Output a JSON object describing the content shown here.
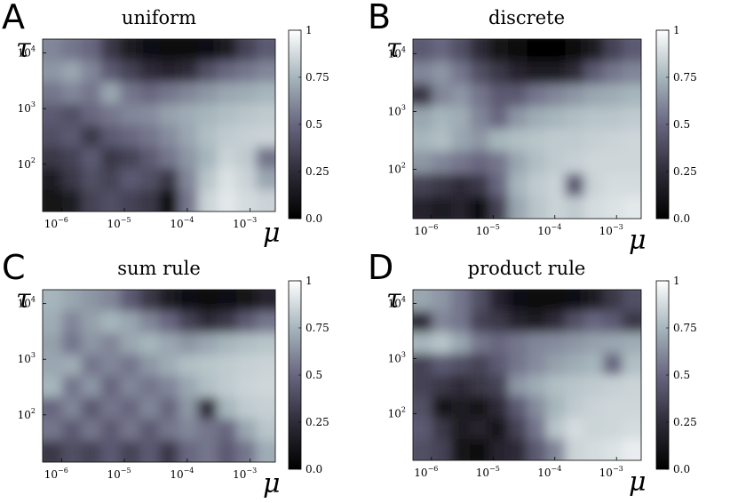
{
  "chart_data": [
    {
      "type": "heatmap",
      "panel": "A",
      "title": "uniform",
      "xlabel": "μ",
      "ylabel": "τ",
      "x_scale": "log",
      "y_scale": "log",
      "x_ticks": [
        "10^-6",
        "10^-5",
        "10^-4",
        "10^-3"
      ],
      "y_ticks": [
        "10^2",
        "10^3",
        "10^4"
      ],
      "colorbar_ticks": [
        "0.0",
        "0.25",
        "0.5",
        "0.75",
        "1"
      ],
      "zlim": [
        0,
        1
      ],
      "grid": [
        [
          0.6,
          0.55,
          0.5,
          0.3,
          0.15,
          0.08,
          0.05,
          0.05,
          0.08,
          0.15,
          0.35,
          0.45
        ],
        [
          0.65,
          0.7,
          0.6,
          0.45,
          0.35,
          0.25,
          0.2,
          0.25,
          0.4,
          0.5,
          0.55,
          0.6
        ],
        [
          0.55,
          0.6,
          0.55,
          0.7,
          0.55,
          0.5,
          0.55,
          0.6,
          0.65,
          0.7,
          0.72,
          0.75
        ],
        [
          0.45,
          0.4,
          0.5,
          0.55,
          0.6,
          0.62,
          0.68,
          0.72,
          0.75,
          0.78,
          0.8,
          0.82
        ],
        [
          0.4,
          0.45,
          0.3,
          0.45,
          0.5,
          0.55,
          0.62,
          0.7,
          0.78,
          0.82,
          0.84,
          0.85
        ],
        [
          0.3,
          0.35,
          0.45,
          0.3,
          0.35,
          0.45,
          0.55,
          0.65,
          0.75,
          0.85,
          0.82,
          0.55
        ],
        [
          0.15,
          0.3,
          0.4,
          0.35,
          0.45,
          0.4,
          0.3,
          0.6,
          0.8,
          0.9,
          0.85,
          0.7
        ],
        [
          0.1,
          0.15,
          0.35,
          0.4,
          0.35,
          0.3,
          0.05,
          0.55,
          0.85,
          0.92,
          0.88,
          0.85
        ]
      ]
    },
    {
      "type": "heatmap",
      "panel": "B",
      "title": "discrete",
      "xlabel": "μ",
      "ylabel": "τ",
      "x_scale": "log",
      "y_scale": "log",
      "x_ticks": [
        "10^-6",
        "10^-5",
        "10^-4",
        "10^-3"
      ],
      "y_ticks": [
        "10^2",
        "10^3",
        "10^4"
      ],
      "colorbar_ticks": [
        "0.0",
        "0.25",
        "0.5",
        "0.75",
        "1"
      ],
      "zlim": [
        0,
        1
      ],
      "grid": [
        [
          0.45,
          0.5,
          0.4,
          0.25,
          0.1,
          0.05,
          0.02,
          0.02,
          0.05,
          0.15,
          0.35,
          0.45
        ],
        [
          0.6,
          0.65,
          0.55,
          0.4,
          0.3,
          0.2,
          0.15,
          0.15,
          0.25,
          0.45,
          0.55,
          0.6
        ],
        [
          0.3,
          0.6,
          0.65,
          0.55,
          0.45,
          0.45,
          0.55,
          0.6,
          0.65,
          0.7,
          0.72,
          0.75
        ],
        [
          0.7,
          0.75,
          0.72,
          0.6,
          0.5,
          0.65,
          0.72,
          0.75,
          0.78,
          0.8,
          0.8,
          0.82
        ],
        [
          0.75,
          0.78,
          0.7,
          0.65,
          0.75,
          0.78,
          0.8,
          0.82,
          0.82,
          0.84,
          0.85,
          0.86
        ],
        [
          0.65,
          0.6,
          0.55,
          0.5,
          0.55,
          0.7,
          0.78,
          0.82,
          0.84,
          0.86,
          0.86,
          0.86
        ],
        [
          0.35,
          0.3,
          0.25,
          0.3,
          0.5,
          0.75,
          0.82,
          0.85,
          0.45,
          0.85,
          0.88,
          0.88
        ],
        [
          0.2,
          0.15,
          0.2,
          0.05,
          0.35,
          0.7,
          0.8,
          0.85,
          0.82,
          0.88,
          0.9,
          0.92
        ]
      ]
    },
    {
      "type": "heatmap",
      "panel": "C",
      "title": "sum rule",
      "xlabel": "μ",
      "ylabel": "τ",
      "x_scale": "log",
      "y_scale": "log",
      "x_ticks": [
        "10^-6",
        "10^-5",
        "10^-4",
        "10^-3"
      ],
      "y_ticks": [
        "10^2",
        "10^3",
        "10^4"
      ],
      "colorbar_ticks": [
        "0.0",
        "0.25",
        "0.5",
        "0.75",
        "1"
      ],
      "zlim": [
        0,
        1
      ],
      "grid": [
        [
          0.75,
          0.7,
          0.65,
          0.6,
          0.45,
          0.3,
          0.15,
          0.08,
          0.05,
          0.08,
          0.1,
          0.2
        ],
        [
          0.72,
          0.6,
          0.68,
          0.75,
          0.7,
          0.6,
          0.5,
          0.35,
          0.25,
          0.3,
          0.45,
          0.55
        ],
        [
          0.68,
          0.55,
          0.65,
          0.6,
          0.7,
          0.75,
          0.7,
          0.65,
          0.7,
          0.75,
          0.78,
          0.8
        ],
        [
          0.7,
          0.72,
          0.55,
          0.6,
          0.55,
          0.65,
          0.72,
          0.78,
          0.8,
          0.82,
          0.84,
          0.85
        ],
        [
          0.75,
          0.55,
          0.65,
          0.5,
          0.6,
          0.55,
          0.6,
          0.7,
          0.78,
          0.82,
          0.85,
          0.86
        ],
        [
          0.5,
          0.6,
          0.45,
          0.55,
          0.5,
          0.6,
          0.5,
          0.65,
          0.25,
          0.75,
          0.82,
          0.84
        ],
        [
          0.55,
          0.45,
          0.55,
          0.45,
          0.55,
          0.45,
          0.55,
          0.6,
          0.55,
          0.5,
          0.7,
          0.8
        ],
        [
          0.3,
          0.4,
          0.35,
          0.45,
          0.35,
          0.45,
          0.3,
          0.5,
          0.55,
          0.45,
          0.55,
          0.72
        ]
      ]
    },
    {
      "type": "heatmap",
      "panel": "D",
      "title": "product rule",
      "xlabel": "μ",
      "ylabel": "τ",
      "x_scale": "log",
      "y_scale": "log",
      "x_ticks": [
        "10^-6",
        "10^-5",
        "10^-4",
        "10^-3"
      ],
      "y_ticks": [
        "10^2",
        "10^3",
        "10^4"
      ],
      "colorbar_ticks": [
        "0.0",
        "0.25",
        "0.5",
        "0.75",
        "1"
      ],
      "zlim": [
        0,
        1
      ],
      "grid": [
        [
          0.7,
          0.65,
          0.55,
          0.4,
          0.2,
          0.08,
          0.05,
          0.05,
          0.08,
          0.15,
          0.3,
          0.4
        ],
        [
          0.25,
          0.6,
          0.55,
          0.35,
          0.3,
          0.2,
          0.15,
          0.25,
          0.4,
          0.5,
          0.45,
          0.3
        ],
        [
          0.75,
          0.8,
          0.7,
          0.55,
          0.5,
          0.55,
          0.6,
          0.62,
          0.65,
          0.68,
          0.7,
          0.72
        ],
        [
          0.35,
          0.45,
          0.4,
          0.35,
          0.45,
          0.55,
          0.62,
          0.68,
          0.72,
          0.75,
          0.5,
          0.78
        ],
        [
          0.35,
          0.3,
          0.25,
          0.3,
          0.35,
          0.65,
          0.72,
          0.78,
          0.8,
          0.82,
          0.84,
          0.85
        ],
        [
          0.4,
          0.1,
          0.15,
          0.1,
          0.25,
          0.45,
          0.62,
          0.75,
          0.82,
          0.85,
          0.86,
          0.86
        ],
        [
          0.45,
          0.3,
          0.15,
          0.2,
          0.1,
          0.35,
          0.55,
          0.8,
          0.88,
          0.85,
          0.86,
          0.88
        ],
        [
          0.4,
          0.35,
          0.1,
          0.05,
          0.2,
          0.25,
          0.45,
          0.6,
          0.85,
          0.88,
          0.9,
          0.94
        ]
      ]
    }
  ]
}
